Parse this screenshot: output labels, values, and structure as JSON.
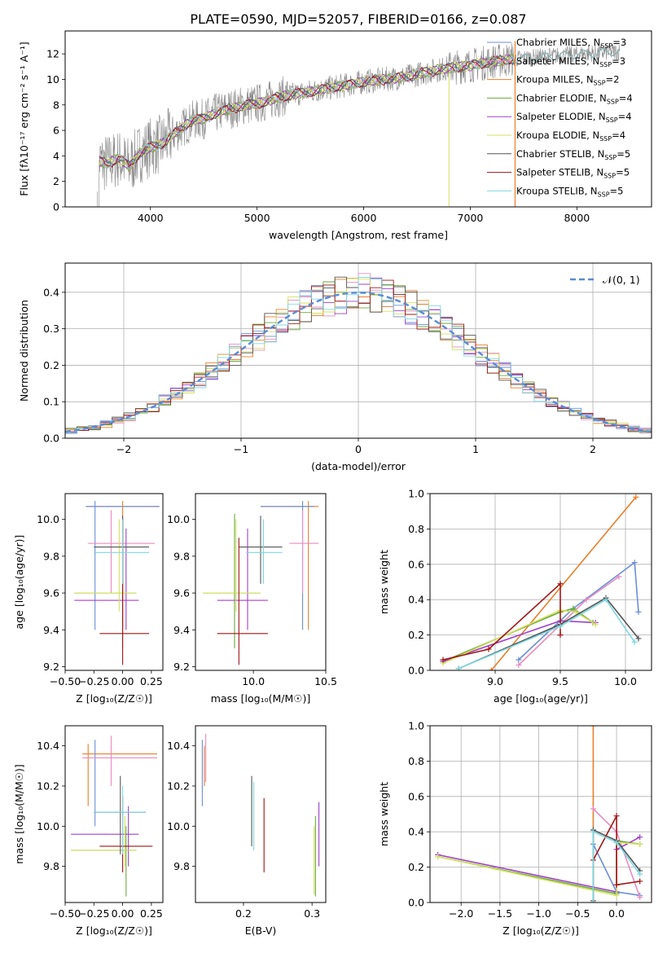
{
  "figure": {
    "title": "PLATE=0590, MJD=52057, FIBERID=0166, z=0.087"
  },
  "colors": {
    "chabrier_miles": "#6a8fd8",
    "salpeter_miles": "#e88cc0",
    "kroupa_miles": "#e87f2a",
    "chabrier_elodie": "#6aaa3a",
    "salpeter_elodie": "#a040c8",
    "kroupa_elodie": "#d4e060",
    "chabrier_stelib": "#555555",
    "salpeter_stelib": "#a01515",
    "kroupa_stelib": "#7ed8e0",
    "data": "#888888",
    "normal_curve": "#5b8bd6"
  },
  "chart_data": [
    {
      "id": "spectrum",
      "type": "line",
      "xlabel": "wavelength [Angstrom, rest frame]",
      "ylabel": "Flux [fλ10⁻¹⁷ erg cm⁻² s⁻¹ A⁻¹]",
      "xlim": [
        3200,
        8700
      ],
      "ylim": [
        0,
        13.8
      ],
      "xticks": [
        4000,
        5000,
        6000,
        7000,
        8000
      ],
      "yticks": [
        0,
        2,
        4,
        6,
        8,
        10,
        12
      ],
      "legend_position": "top-right",
      "legend": [
        {
          "label": "Chabrier MILES, N",
          "sub": "SSP",
          "suffix": "=3",
          "color_key": "chabrier_miles"
        },
        {
          "label": "Salpeter MILES, N",
          "sub": "SSP",
          "suffix": "=3",
          "color_key": "salpeter_miles"
        },
        {
          "label": "Kroupa MILES, N",
          "sub": "SSP",
          "suffix": "=2",
          "color_key": "kroupa_miles"
        },
        {
          "label": "Chabrier ELODIE, N",
          "sub": "SSP",
          "suffix": "=4",
          "color_key": "chabrier_elodie"
        },
        {
          "label": "Salpeter ELODIE, N",
          "sub": "SSP",
          "suffix": "=4",
          "color_key": "salpeter_elodie"
        },
        {
          "label": "Kroupa ELODIE, N",
          "sub": "SSP",
          "suffix": "=4",
          "color_key": "kroupa_elodie"
        },
        {
          "label": "Chabrier STELIB, N",
          "sub": "SSP",
          "suffix": "=5",
          "color_key": "chabrier_stelib"
        },
        {
          "label": "Salpeter STELIB, N",
          "sub": "SSP",
          "suffix": "=5",
          "color_key": "salpeter_stelib"
        },
        {
          "label": "Kroupa STELIB, N",
          "sub": "SSP",
          "suffix": "=5",
          "color_key": "kroupa_stelib"
        }
      ],
      "continuum": {
        "x": [
          3500,
          3600,
          3700,
          3800,
          3900,
          4000,
          4100,
          4200,
          4300,
          4400,
          4500,
          4600,
          4700,
          4800,
          4900,
          5000,
          5100,
          5200,
          5400,
          5600,
          5800,
          6000,
          6200,
          6400,
          6600,
          6800,
          7000,
          7200,
          7400
        ],
        "y": [
          3.6,
          3.4,
          3.8,
          3.2,
          4.2,
          4.7,
          4.9,
          5.6,
          6.2,
          6.8,
          6.9,
          7.3,
          7.6,
          7.8,
          8.0,
          8.1,
          8.3,
          8.6,
          8.9,
          9.2,
          9.5,
          9.8,
          10.0,
          10.2,
          10.6,
          10.9,
          11.1,
          11.4,
          11.6
        ]
      },
      "data_range": [
        3500,
        8400
      ]
    },
    {
      "id": "residuals",
      "type": "line",
      "xlabel": "(data-model)/error",
      "ylabel": "Normed distribution",
      "xlim": [
        -2.5,
        2.5
      ],
      "ylim": [
        0,
        0.48
      ],
      "xticks": [
        -2,
        -1,
        0,
        1,
        2
      ],
      "xtick_labels": [
        "−2",
        "−1",
        "0",
        "1",
        "2"
      ],
      "yticks": [
        0.0,
        0.1,
        0.2,
        0.3,
        0.4
      ],
      "yticks_fmt": [
        "0.0",
        "0.1",
        "0.2",
        "0.3",
        "0.4"
      ],
      "grid": true,
      "legend_position": "top-right",
      "legend": [
        {
          "label": "𝒩(0, 1)",
          "style": "dashed",
          "color_key": "normal_curve"
        }
      ],
      "bin_width": 0.1
    },
    {
      "id": "age_vs_Z",
      "type": "scatter",
      "xlabel": "Z [log₁₀(Z/Z☉)]",
      "ylabel": "age  [log₁₀(age/yr)]",
      "xlim": [
        -0.5,
        0.35
      ],
      "ylim": [
        9.18,
        10.14
      ],
      "xticks": [
        -0.5,
        -0.25,
        0.0,
        0.25
      ],
      "xtick_labels": [
        "−0.50",
        "−0.25",
        "0.00",
        "0.25"
      ],
      "yticks": [
        9.2,
        9.4,
        9.6,
        9.8,
        10.0
      ],
      "yticks_fmt": [
        "9.2",
        "9.4",
        "9.6",
        "9.8",
        "10.0"
      ],
      "points": [
        {
          "x": 0.0,
          "y": 10.07,
          "x0": -0.32,
          "x1": 0.32,
          "y0": 9.4,
          "y1": 10.1,
          "color_key": "kroupa_miles"
        },
        {
          "x": -0.24,
          "y": 10.07,
          "x0": -0.32,
          "x1": 0.32,
          "y0": 9.4,
          "y1": 10.1,
          "color_key": "chabrier_miles"
        },
        {
          "x": -0.1,
          "y": 9.87,
          "x0": -0.3,
          "x1": 0.28,
          "y0": 9.6,
          "y1": 10.05,
          "color_key": "salpeter_miles"
        },
        {
          "x": 0.0,
          "y": 9.6,
          "x0": -0.42,
          "x1": 0.12,
          "y0": 9.3,
          "y1": 10.0,
          "color_key": "chabrier_elodie"
        },
        {
          "x": 0.03,
          "y": 9.56,
          "x0": -0.42,
          "x1": 0.14,
          "y0": 9.4,
          "y1": 9.95,
          "color_key": "salpeter_elodie"
        },
        {
          "x": -0.03,
          "y": 9.6,
          "x0": -0.42,
          "x1": 0.12,
          "y0": 9.5,
          "y1": 10.0,
          "color_key": "kroupa_elodie"
        },
        {
          "x": 0.0,
          "y": 9.85,
          "x0": -0.25,
          "x1": 0.23,
          "y0": 9.65,
          "y1": 10.02,
          "color_key": "chabrier_stelib"
        },
        {
          "x": 0.0,
          "y": 9.38,
          "x0": -0.2,
          "x1": 0.23,
          "y0": 9.21,
          "y1": 10.0,
          "color_key": "salpeter_stelib"
        },
        {
          "x": 0.0,
          "y": 9.82,
          "x0": -0.25,
          "x1": 0.23,
          "y0": 9.65,
          "y1": 10.0,
          "color_key": "kroupa_stelib"
        }
      ]
    },
    {
      "id": "age_vs_mass",
      "type": "scatter",
      "xlabel": "mass [log₁₀(M/M☉)]",
      "xlim": [
        9.6,
        10.5
      ],
      "ylim": [
        9.18,
        10.14
      ],
      "xticks": [
        10.0,
        10.5
      ],
      "xtick_labels": [
        "10.0",
        "10.5"
      ],
      "yticks": [
        9.2,
        9.4,
        9.6,
        9.8,
        10.0
      ],
      "yticks_fmt": [
        "9.2",
        "9.4",
        "9.6",
        "9.8",
        "10.0"
      ],
      "points": [
        {
          "x": 10.38,
          "y": 10.07,
          "x0": 10.05,
          "x1": 10.45,
          "y0": 9.4,
          "y1": 10.1,
          "color_key": "kroupa_miles"
        },
        {
          "x": 10.34,
          "y": 10.07,
          "x0": 10.05,
          "x1": 10.42,
          "y0": 9.4,
          "y1": 10.1,
          "color_key": "chabrier_miles"
        },
        {
          "x": 10.34,
          "y": 9.87,
          "x0": 10.25,
          "x1": 10.45,
          "y0": 9.6,
          "y1": 10.05,
          "color_key": "salpeter_miles"
        },
        {
          "x": 9.87,
          "y": 9.6,
          "x0": 9.65,
          "x1": 10.05,
          "y0": 9.3,
          "y1": 10.03,
          "color_key": "chabrier_elodie"
        },
        {
          "x": 9.96,
          "y": 9.56,
          "x0": 9.75,
          "x1": 10.1,
          "y0": 9.4,
          "y1": 9.95,
          "color_key": "salpeter_elodie"
        },
        {
          "x": 9.88,
          "y": 9.6,
          "x0": 9.65,
          "x1": 10.05,
          "y0": 9.5,
          "y1": 10.0,
          "color_key": "kroupa_elodie"
        },
        {
          "x": 10.05,
          "y": 9.85,
          "x0": 9.9,
          "x1": 10.2,
          "y0": 9.65,
          "y1": 10.02,
          "color_key": "chabrier_stelib"
        },
        {
          "x": 9.9,
          "y": 9.38,
          "x0": 9.75,
          "x1": 10.1,
          "y0": 9.21,
          "y1": 9.9,
          "color_key": "salpeter_stelib"
        },
        {
          "x": 10.07,
          "y": 9.82,
          "x0": 9.95,
          "x1": 10.2,
          "y0": 9.65,
          "y1": 10.0,
          "color_key": "kroupa_stelib"
        }
      ]
    },
    {
      "id": "weight_vs_age",
      "type": "line",
      "xlabel": "age  [log₁₀(age/yr)]",
      "ylabel": "mass weight",
      "xlim": [
        8.5,
        10.2
      ],
      "ylim": [
        0,
        1
      ],
      "xticks": [
        9.0,
        9.5,
        10.0
      ],
      "xtick_labels": [
        "9.0",
        "9.5",
        "10.0"
      ],
      "yticks": [
        0.0,
        0.2,
        0.4,
        0.6,
        0.8,
        1.0
      ],
      "yticks_fmt": [
        "0.0",
        "0.2",
        "0.4",
        "0.6",
        "0.8",
        "1.0"
      ],
      "grid": true,
      "series": [
        {
          "color_key": "kroupa_miles",
          "x": [
            8.97,
            10.08
          ],
          "y": [
            0.0,
            0.98
          ]
        },
        {
          "color_key": "chabrier_miles",
          "x": [
            9.18,
            9.6,
            10.07,
            10.1
          ],
          "y": [
            0.06,
            0.35,
            0.61,
            0.33
          ]
        },
        {
          "color_key": "salpeter_miles",
          "x": [
            9.18,
            9.7,
            9.95
          ],
          "y": [
            0.03,
            0.4,
            0.53
          ]
        },
        {
          "color_key": "chabrier_elodie",
          "x": [
            8.6,
            9.5,
            9.6,
            9.75
          ],
          "y": [
            0.05,
            0.33,
            0.35,
            0.27
          ]
        },
        {
          "color_key": "salpeter_elodie",
          "x": [
            8.6,
            9.5,
            9.77
          ],
          "y": [
            0.05,
            0.28,
            0.27
          ]
        },
        {
          "color_key": "kroupa_elodie",
          "x": [
            8.6,
            9.5,
            9.62,
            9.77
          ],
          "y": [
            0.04,
            0.34,
            0.33,
            0.26
          ]
        },
        {
          "color_key": "chabrier_stelib",
          "x": [
            8.72,
            9.5,
            9.85,
            10.1
          ],
          "y": [
            0.01,
            0.26,
            0.41,
            0.18
          ]
        },
        {
          "color_key": "salpeter_stelib",
          "x": [
            8.6,
            8.95,
            9.5,
            9.5
          ],
          "y": [
            0.06,
            0.12,
            0.49,
            0.2
          ]
        },
        {
          "color_key": "kroupa_stelib",
          "x": [
            8.72,
            9.5,
            9.85,
            10.07
          ],
          "y": [
            0.01,
            0.25,
            0.4,
            0.16
          ]
        }
      ]
    },
    {
      "id": "mass_vs_Z",
      "type": "scatter",
      "xlabel": "Z [log₁₀(Z/Z☉)]",
      "ylabel": "mass [log₁₀(M/M☉)]",
      "xlim": [
        -0.5,
        0.35
      ],
      "ylim": [
        9.62,
        10.5
      ],
      "xticks": [
        -0.5,
        -0.25,
        0.0,
        0.25
      ],
      "xtick_labels": [
        "−0.50",
        "−0.25",
        "0.00",
        "0.25"
      ],
      "yticks": [
        9.8,
        10.0,
        10.2,
        10.4
      ],
      "yticks_fmt": [
        "9.8",
        "10.0",
        "10.2",
        "10.4"
      ],
      "points": [
        {
          "x": -0.3,
          "y": 10.36,
          "x0": -0.35,
          "x1": 0.3,
          "y0": 10.1,
          "y1": 10.41,
          "color_key": "kroupa_miles"
        },
        {
          "x": -0.24,
          "y": 10.07,
          "x0": -0.25,
          "x1": 0.2,
          "y0": 10.0,
          "y1": 10.43,
          "color_key": "chabrier_miles"
        },
        {
          "x": -0.1,
          "y": 10.34,
          "x0": -0.35,
          "x1": 0.3,
          "y0": 10.2,
          "y1": 10.45,
          "color_key": "salpeter_miles"
        },
        {
          "x": 0.03,
          "y": 9.88,
          "x0": -0.45,
          "x1": 0.12,
          "y0": 9.65,
          "y1": 10.0,
          "color_key": "chabrier_elodie"
        },
        {
          "x": 0.05,
          "y": 9.96,
          "x0": -0.45,
          "x1": 0.14,
          "y0": 9.8,
          "y1": 10.1,
          "color_key": "salpeter_elodie"
        },
        {
          "x": 0.02,
          "y": 9.88,
          "x0": -0.45,
          "x1": 0.12,
          "y0": 9.8,
          "y1": 10.05,
          "color_key": "kroupa_elodie"
        },
        {
          "x": -0.02,
          "y": 10.07,
          "x0": -0.25,
          "x1": 0.2,
          "y0": 9.86,
          "y1": 10.25,
          "color_key": "chabrier_stelib"
        },
        {
          "x": 0.0,
          "y": 9.9,
          "x0": -0.2,
          "x1": 0.26,
          "y0": 9.77,
          "y1": 10.15,
          "color_key": "salpeter_stelib"
        },
        {
          "x": 0.0,
          "y": 10.07,
          "x0": -0.25,
          "x1": 0.2,
          "y0": 9.86,
          "y1": 10.2,
          "color_key": "kroupa_stelib"
        }
      ]
    },
    {
      "id": "mass_vs_ebv",
      "type": "scatter",
      "xlabel": "E(B-V)",
      "xlim": [
        0.13,
        0.32
      ],
      "ylim": [
        9.62,
        10.5
      ],
      "xticks": [
        0.2,
        0.3
      ],
      "xtick_labels": [
        "0.2",
        "0.3"
      ],
      "yticks": [
        9.8,
        10.0,
        10.2,
        10.4
      ],
      "yticks_fmt": [
        "9.8",
        "10.0",
        "10.2",
        "10.4"
      ],
      "points": [
        {
          "x": 0.14,
          "y": 10.25,
          "y0": 10.1,
          "y1": 10.43,
          "color_key": "chabrier_miles"
        },
        {
          "x": 0.145,
          "y": 10.35,
          "y0": 10.22,
          "y1": 10.46,
          "color_key": "salpeter_miles"
        },
        {
          "x": 0.143,
          "y": 10.3,
          "y0": 10.2,
          "y1": 10.4,
          "color_key": "kroupa_miles"
        },
        {
          "x": 0.212,
          "y": 10.07,
          "y0": 9.9,
          "y1": 10.25,
          "color_key": "chabrier_stelib"
        },
        {
          "x": 0.215,
          "y": 10.05,
          "y0": 9.88,
          "y1": 10.22,
          "color_key": "kroupa_stelib"
        },
        {
          "x": 0.23,
          "y": 9.95,
          "y0": 9.77,
          "y1": 10.14,
          "color_key": "salpeter_stelib"
        },
        {
          "x": 0.305,
          "y": 9.9,
          "y0": 9.65,
          "y1": 10.05,
          "color_key": "chabrier_elodie"
        },
        {
          "x": 0.31,
          "y": 9.98,
          "y0": 9.8,
          "y1": 10.12,
          "color_key": "salpeter_elodie"
        },
        {
          "x": 0.303,
          "y": 9.88,
          "y0": 9.66,
          "y1": 10.0,
          "color_key": "kroupa_elodie"
        }
      ]
    },
    {
      "id": "weight_vs_Z",
      "type": "line",
      "xlabel": "Z [log₁₀(Z/Z☉)]",
      "ylabel": "mass weight",
      "xlim": [
        -2.4,
        0.45
      ],
      "ylim": [
        0,
        1
      ],
      "xticks": [
        -2.0,
        -1.5,
        -1.0,
        -0.5,
        0.0
      ],
      "xtick_labels": [
        "−2.0",
        "−1.5",
        "−1.0",
        "−0.5",
        "0.0"
      ],
      "yticks": [
        0.0,
        0.2,
        0.4,
        0.6,
        0.8,
        1.0
      ],
      "yticks_fmt": [
        "0.0",
        "0.2",
        "0.4",
        "0.6",
        "0.8",
        "1.0"
      ],
      "grid": true,
      "series": [
        {
          "color_key": "kroupa_miles",
          "x": [
            -0.3,
            -0.3
          ],
          "y": [
            0.0,
            1.0
          ]
        },
        {
          "color_key": "chabrier_miles",
          "x": [
            -0.3,
            0.0,
            0.3
          ],
          "y": [
            0.33,
            0.06,
            0.04
          ]
        },
        {
          "color_key": "salpeter_miles",
          "x": [
            -0.3,
            0.0,
            0.3
          ],
          "y": [
            0.53,
            0.4,
            0.03
          ]
        },
        {
          "color_key": "chabrier_elodie",
          "x": [
            -2.3,
            0.0,
            0.0,
            0.3
          ],
          "y": [
            0.26,
            0.05,
            0.35,
            0.33
          ]
        },
        {
          "color_key": "salpeter_elodie",
          "x": [
            -2.3,
            0.0,
            0.0,
            0.3
          ],
          "y": [
            0.27,
            0.06,
            0.3,
            0.37
          ]
        },
        {
          "color_key": "kroupa_elodie",
          "x": [
            -2.3,
            0.0,
            0.0,
            0.3
          ],
          "y": [
            0.26,
            0.04,
            0.34,
            0.33
          ]
        },
        {
          "color_key": "chabrier_stelib",
          "x": [
            -0.3,
            -0.3,
            0.0,
            0.3
          ],
          "y": [
            0.01,
            0.41,
            0.35,
            0.18
          ]
        },
        {
          "color_key": "salpeter_stelib",
          "x": [
            -0.3,
            0.0,
            0.0,
            0.3
          ],
          "y": [
            0.24,
            0.49,
            0.1,
            0.12
          ]
        },
        {
          "color_key": "kroupa_stelib",
          "x": [
            -0.3,
            -0.3,
            0.0,
            0.3
          ],
          "y": [
            0.0,
            0.4,
            0.34,
            0.16
          ]
        }
      ]
    }
  ]
}
